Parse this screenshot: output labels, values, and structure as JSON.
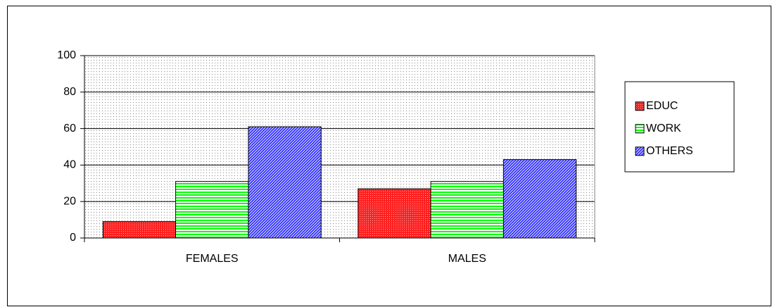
{
  "chart_data": {
    "type": "bar",
    "categories": [
      "FEMALES",
      "MALES"
    ],
    "series": [
      {
        "name": "EDUC",
        "color": "#ff2020",
        "values": [
          9,
          27
        ]
      },
      {
        "name": "WORK",
        "color": "#00ff00",
        "values": [
          31,
          31
        ]
      },
      {
        "name": "OTHERS",
        "color": "#3333ff",
        "values": [
          61,
          43
        ]
      }
    ],
    "ylim": [
      0,
      100
    ],
    "yticks": [
      0,
      20,
      40,
      60,
      80,
      100
    ],
    "grid": true,
    "legend": "right"
  }
}
